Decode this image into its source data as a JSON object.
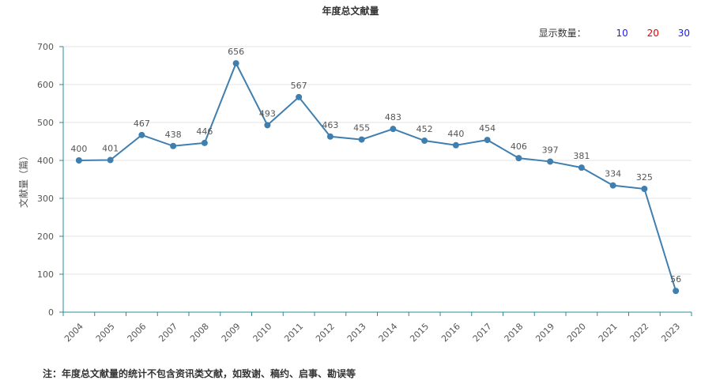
{
  "chart_data": {
    "type": "line",
    "title": "年度总文献量",
    "xlabel": "",
    "ylabel": "文献量（篇）",
    "ylim": [
      0,
      700
    ],
    "yticks": [
      0,
      100,
      200,
      300,
      400,
      500,
      600,
      700
    ],
    "grid": true,
    "categories": [
      "2004",
      "2005",
      "2006",
      "2007",
      "2008",
      "2009",
      "2010",
      "2011",
      "2012",
      "2013",
      "2014",
      "2015",
      "2016",
      "2017",
      "2018",
      "2019",
      "2020",
      "2021",
      "2022",
      "2023"
    ],
    "series": [
      {
        "name": "",
        "values": [
          400,
          401,
          467,
          438,
          446,
          656,
          493,
          567,
          463,
          455,
          483,
          452,
          440,
          454,
          406,
          397,
          381,
          334,
          325,
          56
        ]
      }
    ]
  },
  "controls": {
    "label": "显示数量：",
    "options": [
      "10",
      "20",
      "30"
    ]
  },
  "footnote": "注：年度总文献量的统计不包含资讯类文献，如致谢、稿约、启事、勘误等",
  "colors": {
    "line": "#3f7fb0",
    "axis": "#2a8c9a",
    "grid": "#e3e3e3"
  }
}
